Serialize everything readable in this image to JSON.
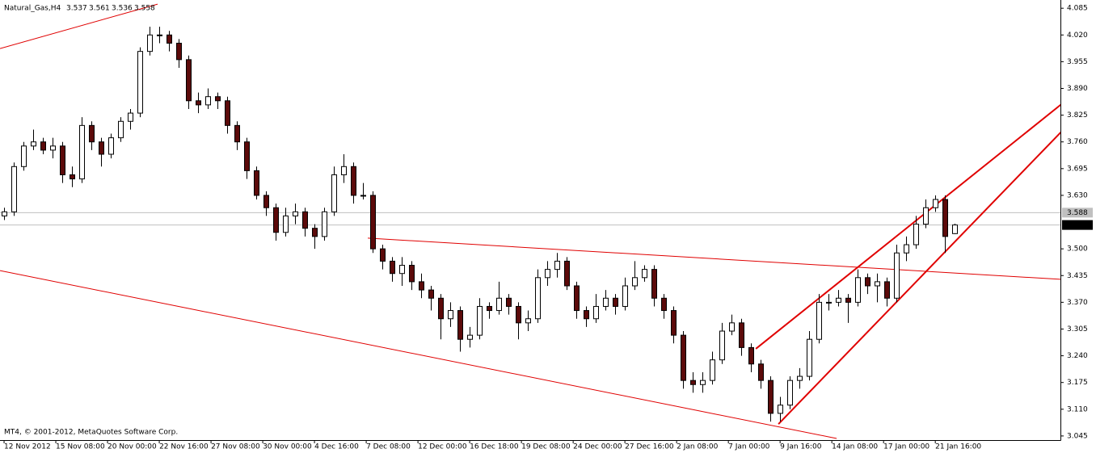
{
  "chart_data": {
    "type": "candlestick",
    "symbol": "Natural_Gas,H4",
    "footer": "MT4, © 2001-2012, MetaQuotes Software Corp.",
    "open": [
      3.58,
      3.59,
      3.7,
      3.75,
      3.76,
      3.74,
      3.75,
      3.68,
      3.67,
      3.8,
      3.76,
      3.73,
      3.77,
      3.81,
      3.83,
      3.98,
      4.02,
      4.02,
      4.0,
      3.96,
      3.86,
      3.85,
      3.87,
      3.86,
      3.8,
      3.76,
      3.69,
      3.63,
      3.6,
      3.54,
      3.58,
      3.59,
      3.55,
      3.53,
      3.59,
      3.68,
      3.7,
      3.63,
      3.63,
      3.5,
      3.47,
      3.44,
      3.46,
      3.42,
      3.4,
      3.38,
      3.33,
      3.35,
      3.28,
      3.29,
      3.36,
      3.35,
      3.38,
      3.36,
      3.32,
      3.33,
      3.43,
      3.45,
      3.47,
      3.41,
      3.35,
      3.33,
      3.36,
      3.38,
      3.36,
      3.41,
      3.43,
      3.45,
      3.38,
      3.35,
      3.29,
      3.18,
      3.17,
      3.18,
      3.23,
      3.3,
      3.32,
      3.26,
      3.22,
      3.18,
      3.1,
      3.12,
      3.18,
      3.19,
      3.28,
      3.37,
      3.37,
      3.38,
      3.37,
      3.43,
      3.41,
      3.42,
      3.38,
      3.49,
      3.51,
      3.56,
      3.6,
      3.62,
      3.537
    ],
    "high": [
      3.6,
      3.71,
      3.76,
      3.79,
      3.77,
      3.77,
      3.76,
      3.7,
      3.82,
      3.81,
      3.77,
      3.78,
      3.82,
      3.84,
      3.99,
      4.04,
      4.04,
      4.03,
      4.01,
      3.97,
      3.88,
      3.89,
      3.88,
      3.87,
      3.81,
      3.77,
      3.7,
      3.64,
      3.61,
      3.6,
      3.61,
      3.6,
      3.56,
      3.6,
      3.7,
      3.73,
      3.71,
      3.66,
      3.64,
      3.51,
      3.48,
      3.48,
      3.47,
      3.44,
      3.41,
      3.39,
      3.37,
      3.36,
      3.31,
      3.38,
      3.37,
      3.42,
      3.39,
      3.37,
      3.35,
      3.45,
      3.47,
      3.49,
      3.48,
      3.42,
      3.36,
      3.39,
      3.4,
      3.39,
      3.43,
      3.47,
      3.46,
      3.46,
      3.39,
      3.36,
      3.3,
      3.2,
      3.2,
      3.25,
      3.32,
      3.34,
      3.33,
      3.27,
      3.23,
      3.19,
      3.14,
      3.19,
      3.21,
      3.3,
      3.39,
      3.39,
      3.4,
      3.39,
      3.45,
      3.44,
      3.44,
      3.43,
      3.51,
      3.53,
      3.58,
      3.62,
      3.63,
      3.63,
      3.561
    ],
    "low": [
      3.57,
      3.58,
      3.69,
      3.74,
      3.73,
      3.72,
      3.66,
      3.65,
      3.66,
      3.74,
      3.7,
      3.72,
      3.76,
      3.79,
      3.82,
      3.97,
      4.0,
      3.98,
      3.94,
      3.84,
      3.83,
      3.84,
      3.84,
      3.78,
      3.74,
      3.67,
      3.62,
      3.58,
      3.52,
      3.53,
      3.56,
      3.53,
      3.5,
      3.52,
      3.58,
      3.66,
      3.61,
      3.62,
      3.49,
      3.45,
      3.42,
      3.41,
      3.4,
      3.38,
      3.35,
      3.28,
      3.31,
      3.25,
      3.26,
      3.28,
      3.33,
      3.34,
      3.34,
      3.28,
      3.3,
      3.32,
      3.41,
      3.43,
      3.4,
      3.33,
      3.31,
      3.32,
      3.35,
      3.34,
      3.35,
      3.4,
      3.42,
      3.36,
      3.33,
      3.27,
      3.16,
      3.15,
      3.15,
      3.17,
      3.22,
      3.29,
      3.24,
      3.2,
      3.16,
      3.08,
      3.08,
      3.11,
      3.16,
      3.18,
      3.27,
      3.35,
      3.36,
      3.32,
      3.36,
      3.39,
      3.37,
      3.36,
      3.37,
      3.47,
      3.5,
      3.55,
      3.59,
      3.49,
      3.536
    ],
    "close": [
      3.59,
      3.7,
      3.75,
      3.76,
      3.74,
      3.75,
      3.68,
      3.67,
      3.8,
      3.76,
      3.73,
      3.77,
      3.81,
      3.83,
      3.98,
      4.02,
      4.02,
      4.0,
      3.96,
      3.86,
      3.85,
      3.87,
      3.86,
      3.8,
      3.76,
      3.69,
      3.63,
      3.6,
      3.54,
      3.58,
      3.59,
      3.55,
      3.53,
      3.59,
      3.68,
      3.7,
      3.63,
      3.63,
      3.5,
      3.47,
      3.44,
      3.46,
      3.42,
      3.4,
      3.38,
      3.33,
      3.35,
      3.28,
      3.29,
      3.36,
      3.35,
      3.38,
      3.36,
      3.32,
      3.33,
      3.43,
      3.45,
      3.47,
      3.41,
      3.35,
      3.33,
      3.36,
      3.38,
      3.36,
      3.41,
      3.43,
      3.45,
      3.38,
      3.35,
      3.29,
      3.18,
      3.17,
      3.18,
      3.23,
      3.3,
      3.32,
      3.26,
      3.22,
      3.18,
      3.1,
      3.12,
      3.18,
      3.19,
      3.28,
      3.37,
      3.37,
      3.38,
      3.37,
      3.43,
      3.41,
      3.42,
      3.38,
      3.49,
      3.51,
      3.56,
      3.6,
      3.62,
      3.53,
      3.558
    ],
    "ask_line": 3.588,
    "bull_color": "#ffffff",
    "bear_color": "#5c0a0a",
    "line_color": "#e00000",
    "ylim": [
      3.035,
      4.105
    ],
    "yticks": [
      4.085,
      {
        "value": 4.02,
        "label": "4.020"
      },
      3.955,
      {
        "value": 3.89,
        "label": "3.890"
      },
      3.825,
      {
        "value": 3.76,
        "label": "3.760"
      },
      3.695,
      {
        "value": 3.63,
        "label": "3.630"
      },
      {
        "value": 3.5,
        "label": "3.500"
      },
      3.435,
      {
        "value": 3.37,
        "label": "3.370"
      },
      3.305,
      {
        "value": 3.24,
        "label": "3.240"
      },
      3.175,
      {
        "value": 3.11,
        "label": "3.110"
      },
      3.045
    ],
    "xlim": [
      -0.42,
      108.9
    ],
    "xticks": [
      {
        "value": 0,
        "label": "12 Nov 2012"
      },
      {
        "value": 5.333,
        "label": "15 Nov 08:00"
      },
      {
        "value": 10.667,
        "label": "20 Nov 00:00"
      },
      {
        "value": 16,
        "label": "22 Nov 16:00"
      },
      {
        "value": 21.333,
        "label": "27 Nov 08:00"
      },
      {
        "value": 26.667,
        "label": "30 Nov 00:00"
      },
      {
        "value": 32,
        "label": "4 Dec 16:00"
      },
      {
        "value": 37.333,
        "label": "7 Dec 08:00"
      },
      {
        "value": 42.667,
        "label": "12 Dec 00:00"
      },
      {
        "value": 48,
        "label": "16 Dec 18:00"
      },
      {
        "value": 53.333,
        "label": "19 Dec 08:00"
      },
      {
        "value": 58.667,
        "label": "24 Dec 00:00"
      },
      {
        "value": 64,
        "label": "27 Dec 16:00"
      },
      {
        "value": 69.333,
        "label": "2 Jan 08:00"
      },
      {
        "value": 74.667,
        "label": "7 Jan 00:00"
      },
      {
        "value": 80,
        "label": "9 Jan 16:00"
      },
      {
        "value": 85.333,
        "label": "14 Jan 08:00"
      },
      {
        "value": 90.667,
        "label": "17 Jan 00:00"
      },
      {
        "value": 96,
        "label": "21 Jan 16:00"
      }
    ],
    "trendlines": [
      {
        "x": [
          -0.42,
          15.83
        ],
        "y": [
          3.987,
          4.095
        ]
      },
      {
        "x": [
          -0.42,
          85.83
        ],
        "y": [
          3.447,
          3.039
        ]
      },
      {
        "x": [
          37.5,
          111.67
        ],
        "y": [
          3.526,
          3.422
        ]
      },
      {
        "x": [
          77.5,
          111.67
        ],
        "y": [
          3.257,
          3.902
        ]
      },
      {
        "x": [
          79.83,
          111.67
        ],
        "y": [
          3.074,
          3.85
        ]
      }
    ]
  }
}
